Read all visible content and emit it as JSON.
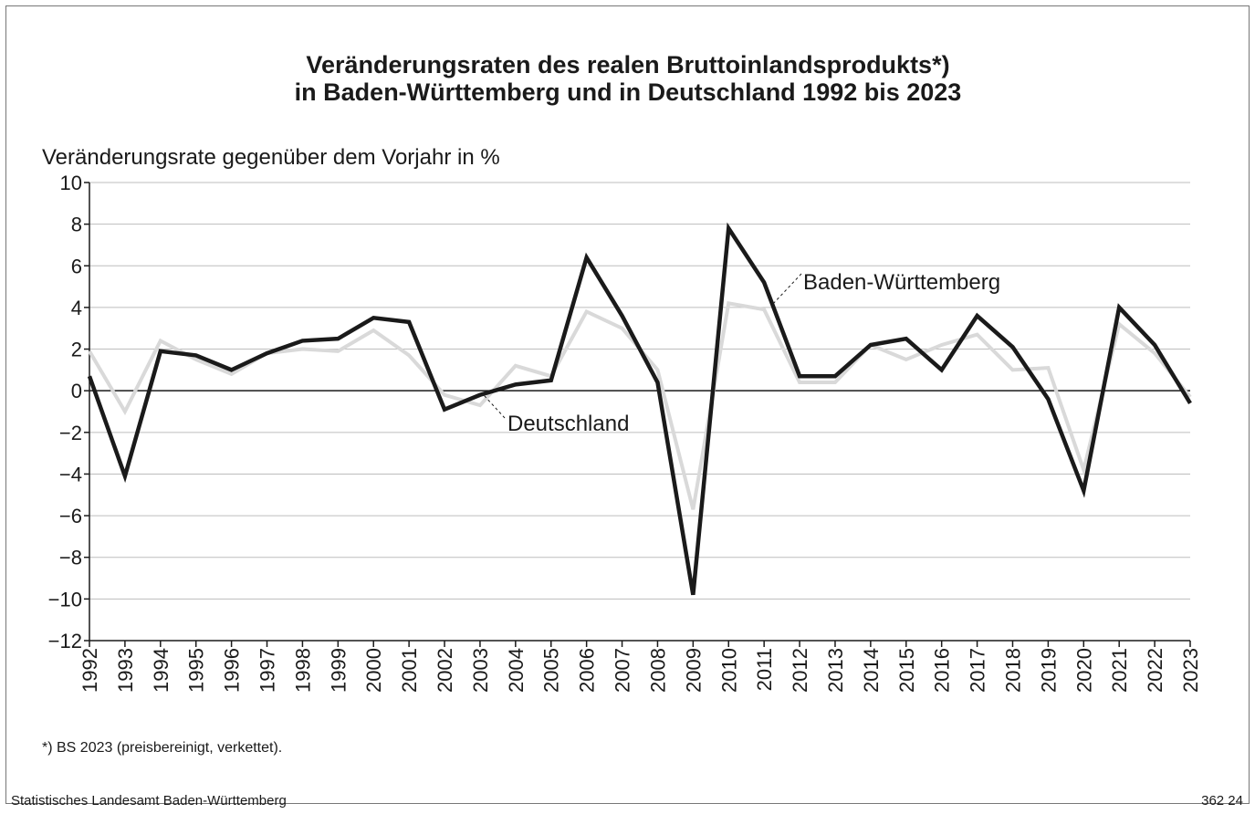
{
  "chart_data": {
    "type": "line",
    "title": [
      "Veränderungsraten des realen Bruttoinlandsprodukts*)",
      "in Baden-Württemberg und in Deutschland 1992 bis 2023"
    ],
    "y_label": "Veränderungsrate gegenüber dem Vorjahr in %",
    "footnote": "*) BS 2023 (preisbereinigt, verkettet).",
    "source": "Statistisches Landesamt Baden-Württemberg",
    "code": "362 24",
    "categories": [
      "1992",
      "1993",
      "1994",
      "1995",
      "1996",
      "1997",
      "1998",
      "1999",
      "2000",
      "2001",
      "2002",
      "2003",
      "2004",
      "2005",
      "2006",
      "2007",
      "2008",
      "2009",
      "2010",
      "2011",
      "2012",
      "2013",
      "2014",
      "2015",
      "2016",
      "2017",
      "2018",
      "2019",
      "2020",
      "2021",
      "2022",
      "2023"
    ],
    "series": [
      {
        "name": "Deutschland",
        "color": "#d9d9d9",
        "values": [
          1.9,
          -1.0,
          2.4,
          1.5,
          0.8,
          1.8,
          2.0,
          1.9,
          2.9,
          1.7,
          -0.2,
          -0.7,
          1.2,
          0.7,
          3.8,
          3.0,
          1.0,
          -5.7,
          4.2,
          3.9,
          0.4,
          0.4,
          2.2,
          1.5,
          2.2,
          2.7,
          1.0,
          1.1,
          -3.8,
          3.2,
          1.8,
          -0.3
        ]
      },
      {
        "name": "Baden-Württemberg",
        "color": "#1a1a1a",
        "values": [
          0.7,
          -4.1,
          1.9,
          1.7,
          1.0,
          1.8,
          2.4,
          2.5,
          3.5,
          3.3,
          -0.9,
          -0.2,
          0.3,
          0.5,
          6.4,
          3.6,
          0.4,
          -9.8,
          7.8,
          5.2,
          0.7,
          0.7,
          2.2,
          2.5,
          1.0,
          3.6,
          2.1,
          -0.4,
          -4.8,
          4.0,
          2.2,
          -0.6
        ]
      }
    ],
    "ylim": [
      -12,
      10
    ],
    "yticks": [
      10,
      8,
      6,
      4,
      2,
      0,
      {
        "value": -2,
        "label": "−2"
      },
      {
        "value": -4,
        "label": "−4"
      },
      {
        "value": -6,
        "label": "−6"
      },
      {
        "value": -8,
        "label": "−8"
      },
      {
        "value": -10,
        "label": "−10"
      },
      {
        "value": -12,
        "label": "−12"
      }
    ],
    "grid": true
  }
}
